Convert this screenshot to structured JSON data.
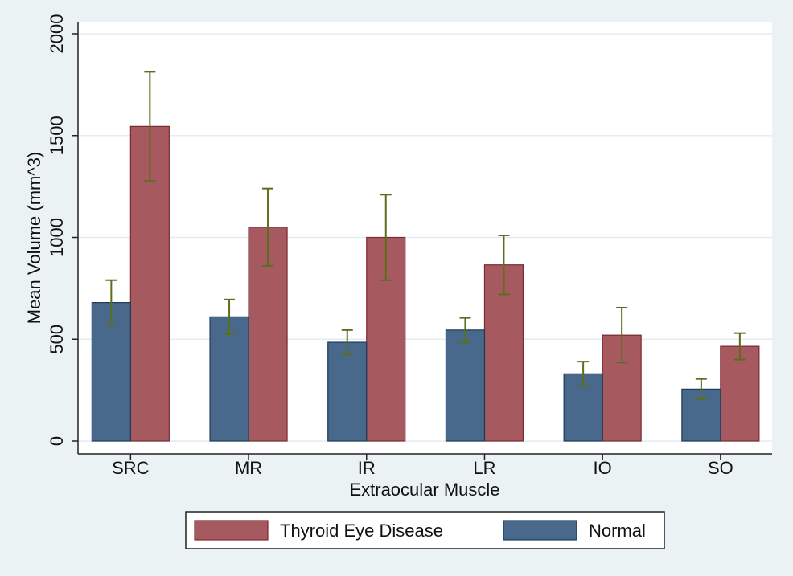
{
  "chart_data": {
    "type": "bar",
    "x_label": "Extraocular Muscle",
    "y_label": "Mean Volume (mm^3)",
    "categories": [
      "SRC",
      "MR",
      "IR",
      "LR",
      "IO",
      "SO"
    ],
    "series": [
      {
        "name": "Thyroid Eye Disease",
        "color": "#a65a5f",
        "values": [
          1545,
          1050,
          1000,
          865,
          520,
          465
        ],
        "errors": [
          268,
          190,
          210,
          145,
          135,
          65
        ]
      },
      {
        "name": "Normal",
        "color": "#48698b",
        "values": [
          680,
          610,
          485,
          545,
          330,
          255
        ],
        "errors": [
          110,
          85,
          60,
          60,
          60,
          50
        ]
      }
    ],
    "error_color": "#5b6e1c",
    "ylim": [
      0,
      2000
    ],
    "yticks": [
      0,
      500,
      1000,
      1500,
      2000
    ],
    "grid": true
  }
}
